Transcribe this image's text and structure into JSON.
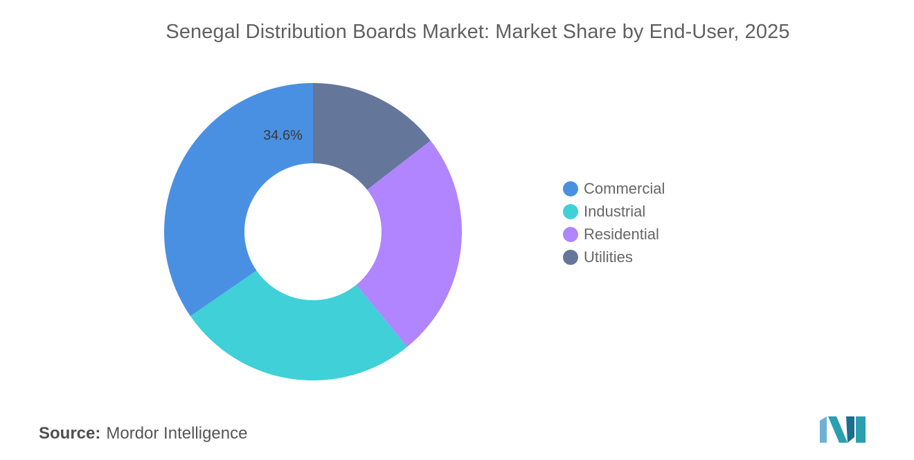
{
  "chart_data": {
    "type": "pie",
    "variant": "donut",
    "title": "Senegal Distribution Boards Market: Market Share by End-User, 2025",
    "categories": [
      "Commercial",
      "Industrial",
      "Residential",
      "Utilities"
    ],
    "values": [
      34.6,
      26.3,
      24.6,
      14.5
    ],
    "unit": "%",
    "colors": [
      "#4a90e2",
      "#3fd0d8",
      "#b085ff",
      "#64769a"
    ],
    "data_labels": [
      {
        "category": "Commercial",
        "text": "34.6%"
      }
    ],
    "legend_position": "right",
    "start_angle": "12 o'clock",
    "direction": "clockwise",
    "order_drawn": [
      "Utilities",
      "Residential",
      "Industrial",
      "Commercial"
    ]
  },
  "source": {
    "label": "Source:",
    "text": "Mordor Intelligence"
  },
  "logo": {
    "icon": "mordor-intelligence-logo",
    "colors": [
      "#6fb1d6",
      "#2a9fb0",
      "#1b6f8c"
    ]
  }
}
